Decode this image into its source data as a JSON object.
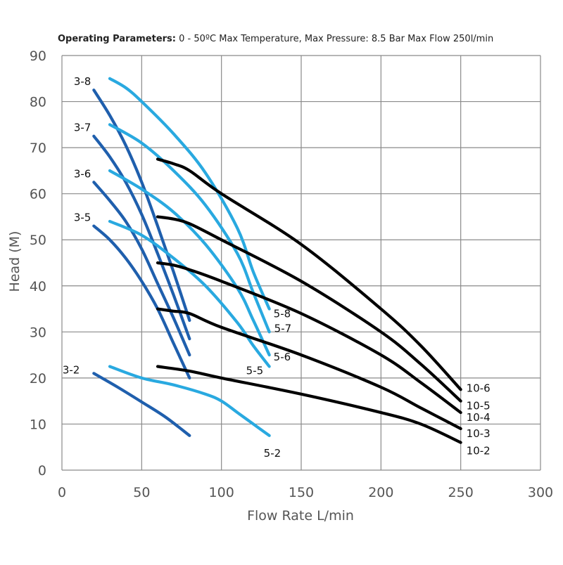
{
  "header": {
    "bold_label": "Operating Parameters:",
    "rest": "0 - 50ºC Max Temperature, Max Pressure: 8.5 Bar Max Flow 250l/min"
  },
  "chart_data": {
    "type": "line",
    "title": "Operating Parameters: 0 - 50ºC Max Temperature, Max Pressure: 8.5 Bar Max Flow 250l/min",
    "xlabel": "Flow Rate L/min",
    "ylabel": "Head (M)",
    "xlim": [
      0,
      300
    ],
    "ylim": [
      0,
      90
    ],
    "xticks": [
      0,
      50,
      100,
      150,
      200,
      250,
      300
    ],
    "yticks": [
      0,
      10,
      20,
      30,
      40,
      50,
      60,
      70,
      80,
      90
    ],
    "grid": true,
    "colors": {
      "series_3": "#1f5fad",
      "series_5": "#29a9e0",
      "series_10": "#000000",
      "grid": "#8a8a8a",
      "axis_text": "#555555"
    },
    "series": [
      {
        "name": "3-2",
        "group": "3",
        "color": "#1f5fad",
        "x": [
          20,
          35,
          50,
          65,
          80
        ],
        "y": [
          21,
          18,
          14.8,
          11.5,
          7.5
        ]
      },
      {
        "name": "3-5",
        "group": "3",
        "color": "#1f5fad",
        "x": [
          20,
          30,
          40,
          50,
          60,
          70,
          80
        ],
        "y": [
          53,
          50,
          46,
          41,
          35,
          27.5,
          20
        ]
      },
      {
        "name": "3-6",
        "group": "3",
        "color": "#1f5fad",
        "x": [
          20,
          30,
          40,
          50,
          60,
          70,
          80
        ],
        "y": [
          62.5,
          58.5,
          54,
          48,
          40.5,
          33,
          25
        ]
      },
      {
        "name": "3-7",
        "group": "3",
        "color": "#1f5fad",
        "x": [
          20,
          30,
          40,
          50,
          60,
          70,
          80
        ],
        "y": [
          72.5,
          68,
          62.5,
          55.5,
          47,
          38,
          28.5
        ]
      },
      {
        "name": "3-8",
        "group": "3",
        "color": "#1f5fad",
        "x": [
          20,
          30,
          40,
          50,
          60,
          70,
          80
        ],
        "y": [
          82.5,
          77,
          70.5,
          62.5,
          53,
          43,
          32.5
        ]
      },
      {
        "name": "5-2",
        "group": "5",
        "color": "#29a9e0",
        "x": [
          30,
          50,
          70,
          90,
          100,
          110,
          120,
          130
        ],
        "y": [
          22.5,
          20,
          18.5,
          16.5,
          15,
          12.5,
          10,
          7.5
        ]
      },
      {
        "name": "5-5",
        "group": "5",
        "color": "#29a9e0",
        "x": [
          30,
          50,
          70,
          90,
          110,
          120,
          130
        ],
        "y": [
          54,
          51,
          46,
          40,
          32,
          27,
          22.5
        ]
      },
      {
        "name": "5-6",
        "group": "5",
        "color": "#29a9e0",
        "x": [
          30,
          50,
          70,
          90,
          110,
          120,
          130
        ],
        "y": [
          65,
          61,
          56,
          49,
          39.5,
          32.5,
          25
        ]
      },
      {
        "name": "5-7",
        "group": "5",
        "color": "#29a9e0",
        "x": [
          30,
          50,
          70,
          90,
          110,
          120,
          130
        ],
        "y": [
          75,
          71,
          65,
          57.5,
          47,
          38.5,
          30
        ]
      },
      {
        "name": "5-8",
        "group": "5",
        "color": "#29a9e0",
        "x": [
          30,
          40,
          50,
          70,
          90,
          110,
          120,
          130
        ],
        "y": [
          85,
          83,
          80,
          73,
          64.5,
          52.5,
          43,
          35
        ]
      },
      {
        "name": "10-2",
        "group": "10",
        "color": "#000000",
        "x": [
          60,
          80,
          100,
          150,
          200,
          225,
          250
        ],
        "y": [
          22.5,
          21.5,
          20,
          16.5,
          12.5,
          10,
          6
        ]
      },
      {
        "name": "10-3",
        "group": "10",
        "color": "#000000",
        "x": [
          60,
          70,
          80,
          100,
          150,
          200,
          225,
          250
        ],
        "y": [
          35,
          34.5,
          34,
          31,
          25,
          18,
          13.5,
          9
        ]
      },
      {
        "name": "10-4",
        "group": "10",
        "color": "#000000",
        "x": [
          60,
          70,
          80,
          100,
          150,
          200,
          225,
          250
        ],
        "y": [
          45,
          44.5,
          43.5,
          41,
          34,
          25,
          19,
          12.5
        ]
      },
      {
        "name": "10-5",
        "group": "10",
        "color": "#000000",
        "x": [
          60,
          70,
          80,
          100,
          150,
          200,
          225,
          250
        ],
        "y": [
          55,
          54.5,
          53.5,
          50,
          41,
          30,
          23,
          15
        ]
      },
      {
        "name": "10-6",
        "group": "10",
        "color": "#000000",
        "x": [
          60,
          70,
          80,
          100,
          150,
          200,
          225,
          250
        ],
        "y": [
          67.5,
          66.5,
          65,
          60,
          49,
          35,
          27,
          17.5
        ]
      }
    ]
  }
}
